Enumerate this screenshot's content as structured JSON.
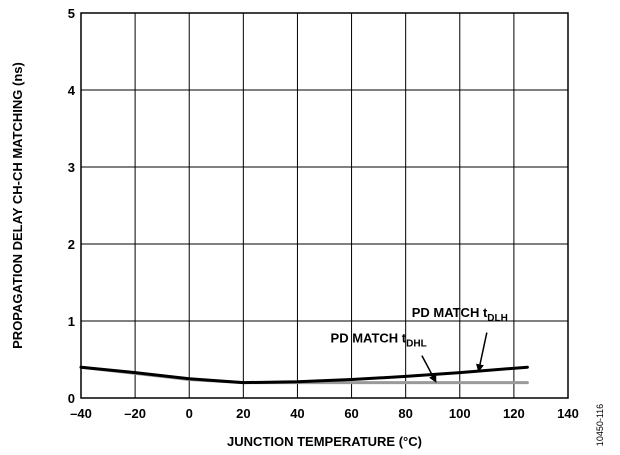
{
  "chart_data": {
    "type": "line",
    "title": "",
    "xlabel": "JUNCTION TEMPERATURE (°C)",
    "ylabel": "PROPAGATION DELAY CH-CH MATCHING (ns)",
    "xlim": [
      -40,
      140
    ],
    "ylim": [
      0,
      5
    ],
    "xticks": [
      -40,
      -20,
      0,
      20,
      40,
      60,
      80,
      100,
      120,
      140
    ],
    "xtick_labels": [
      "–40",
      "–20",
      "0",
      "20",
      "40",
      "60",
      "80",
      "100",
      "120",
      "140"
    ],
    "yticks": [
      0,
      1,
      2,
      3,
      4,
      5
    ],
    "ytick_labels": [
      "0",
      "1",
      "2",
      "3",
      "4",
      "5"
    ],
    "grid": true,
    "legend": "none",
    "series": [
      {
        "name": "PD MATCH tDLH",
        "label_main": "PD MATCH t",
        "label_sub": "DLH",
        "color": "#000000",
        "x": [
          -40,
          -20,
          0,
          20,
          40,
          60,
          80,
          100,
          125
        ],
        "y": [
          0.4,
          0.33,
          0.25,
          0.2,
          0.21,
          0.24,
          0.28,
          0.33,
          0.4
        ]
      },
      {
        "name": "PD MATCH tDHL",
        "label_main": "PD MATCH t",
        "label_sub": "DHL",
        "color": "#9a9a9a",
        "x": [
          -40,
          -20,
          0,
          20,
          40,
          60,
          80,
          100,
          125
        ],
        "y": [
          0.4,
          0.32,
          0.24,
          0.2,
          0.2,
          0.2,
          0.2,
          0.2,
          0.2
        ]
      }
    ],
    "annotations": [
      {
        "series_index": 0,
        "label_main": "PD MATCH t",
        "label_sub": "DLH",
        "text_x": 100,
        "text_y": 1.05,
        "arrow_from": [
          110,
          0.85
        ],
        "arrow_to": [
          107,
          0.36
        ]
      },
      {
        "series_index": 1,
        "label_main": "PD MATCH t",
        "label_sub": "DHL",
        "text_x": 70,
        "text_y": 0.72,
        "arrow_from": [
          86,
          0.55
        ],
        "arrow_to": [
          91,
          0.22
        ]
      }
    ]
  },
  "figure_id": "10450-116"
}
